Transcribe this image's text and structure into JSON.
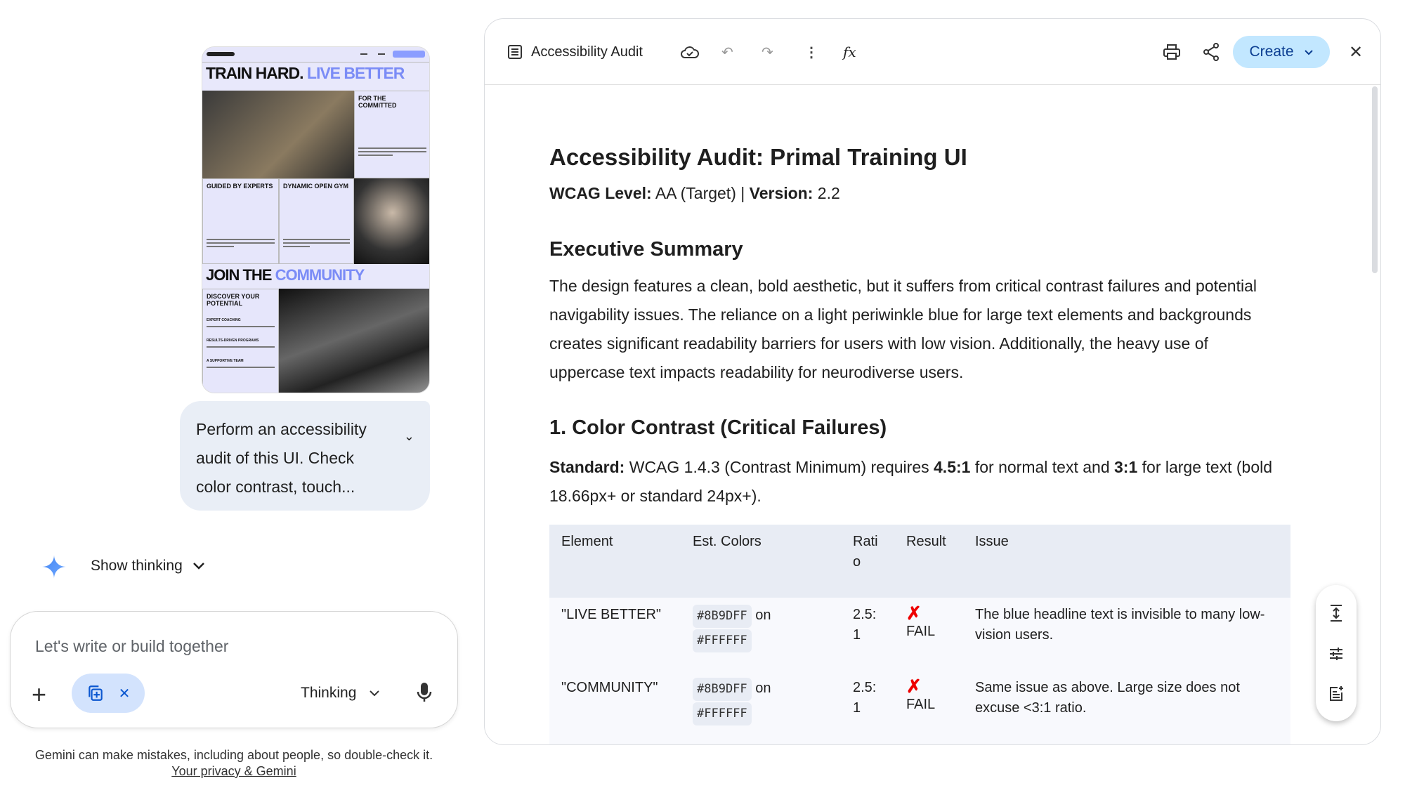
{
  "thumbnail": {
    "headline_black": "TRAIN HARD.",
    "headline_blue": "LIVE BETTER",
    "for_committed": "FOR THE COMMITTED",
    "guided": "GUIDED BY EXPERTS",
    "dynamic": "DYNAMIC OPEN GYM",
    "join_black": "JOIN THE",
    "join_blue": "COMMUNITY",
    "discover": "DISCOVER YOUR POTENTIAL",
    "items": [
      "EXPERT COACHING",
      "RESULTS-DRIVEN PROGRAMS",
      "A SUPPORTIVE TEAM"
    ],
    "accent": "#8B9DFF"
  },
  "chat": {
    "user_message": "Perform an accessibility audit of this UI. Check color contrast, touch...",
    "show_thinking": "Show thinking",
    "input_placeholder": "Let's write or build together",
    "mode": "Thinking",
    "disclaimer": "Gemini can make mistakes, including about people, so double-check it.",
    "privacy_link": "Your privacy & Gemini"
  },
  "toolbar": {
    "title": "Accessibility Audit",
    "create_label": "Create"
  },
  "doc": {
    "title": "Accessibility Audit: Primal Training UI",
    "meta": {
      "level_label": "WCAG Level:",
      "level_value": "AA (Target)",
      "sep": "|",
      "version_label": "Version:",
      "version_value": "2.2"
    },
    "exec_heading": "Executive Summary",
    "exec_lines": [
      "The design features a clean, bold aesthetic, but it suffers from critical contrast failures and potential",
      "navigability issues. The reliance on a light periwinkle blue for large text elements and backgrounds",
      "creates significant readability barriers for users with low vision. Additionally, the heavy use of",
      "uppercase text impacts readability for neurodiverse users."
    ],
    "section1_heading": "1. Color Contrast (Critical Failures)",
    "standard": {
      "label": "Standard:",
      "t1": "WCAG 1.4.3 (Contrast Minimum) requires",
      "r1": "4.5:1",
      "t2": "for normal text and",
      "r2": "3:1",
      "t3": "for large text (bold",
      "line2": "18.66px+ or standard 24px+)."
    },
    "table": {
      "headers": [
        "Element",
        "Est. Colors",
        "Rati o",
        "Result",
        "Issue"
      ],
      "rows": [
        {
          "element": "\"LIVE BETTER\"",
          "fg": "#8B9DFF",
          "on": "on",
          "bg": "#FFFFFF",
          "ratio_a": "2.5:",
          "ratio_b": "1",
          "result": "FAIL",
          "issue": "The blue headline text is invisible to many low-vision users."
        },
        {
          "element": "\"COMMUNITY\"",
          "fg": "#8B9DFF",
          "on": "on",
          "bg": "#FFFFFF",
          "ratio_a": "2.5:",
          "ratio_b": "1",
          "result": "FAIL",
          "issue": "Same issue as above. Large size does not excuse <3:1 ratio."
        }
      ]
    }
  }
}
